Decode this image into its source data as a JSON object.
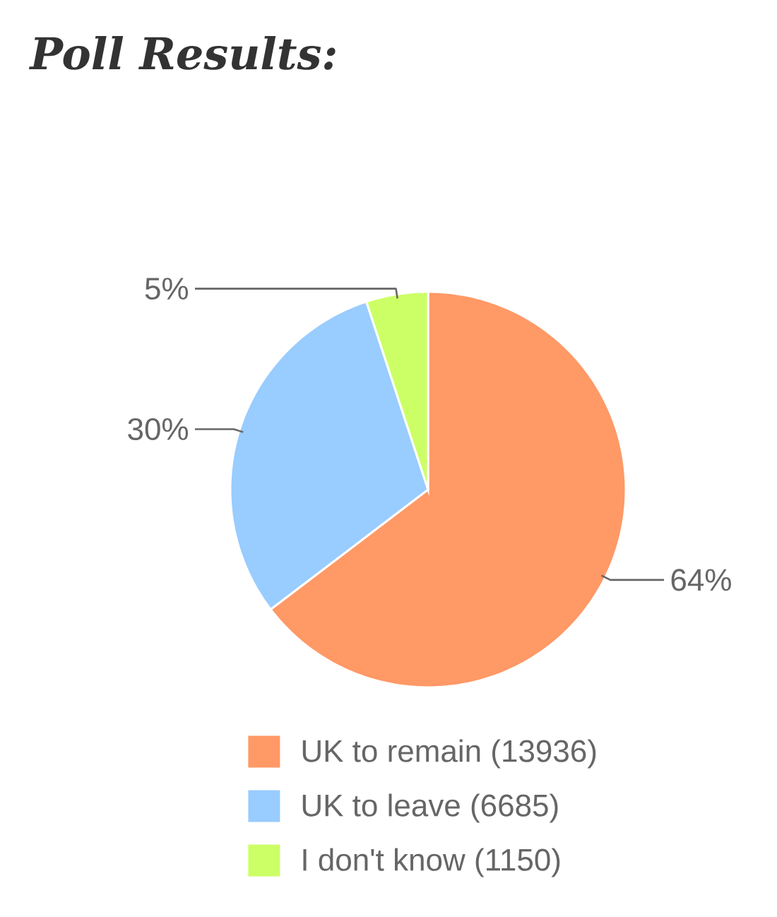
{
  "chart_data": {
    "type": "pie",
    "title": "Poll Results:",
    "categories": [
      "UK to remain (13936)",
      "UK to leave (6685)",
      "I don't know (1150)"
    ],
    "values": [
      64,
      30,
      5
    ],
    "value_labels": [
      "64%",
      "30%",
      "5%"
    ],
    "colors": [
      "#ff9966",
      "#99ccff",
      "#ccff66"
    ],
    "legend": "bottom"
  }
}
